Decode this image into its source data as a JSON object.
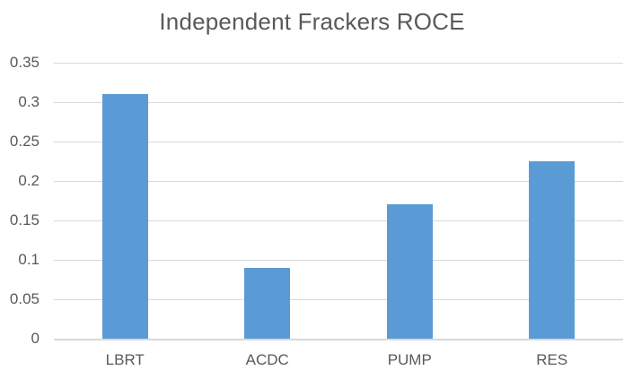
{
  "chart_data": {
    "type": "bar",
    "title": "Independent Frackers ROCE",
    "categories": [
      "LBRT",
      "ACDC",
      "PUMP",
      "RES"
    ],
    "values": [
      0.31,
      0.09,
      0.17,
      0.225
    ],
    "xlabel": "",
    "ylabel": "",
    "ylim": [
      0,
      0.35
    ],
    "yticks": [
      {
        "value": 0,
        "label": "0"
      },
      {
        "value": 0.05,
        "label": "0.05"
      },
      {
        "value": 0.1,
        "label": "0.1"
      },
      {
        "value": 0.15,
        "label": "0.15"
      },
      {
        "value": 0.2,
        "label": "0.2"
      },
      {
        "value": 0.25,
        "label": "0.25"
      },
      {
        "value": 0.3,
        "label": "0.3"
      },
      {
        "value": 0.35,
        "label": "0.35"
      }
    ],
    "grid": true,
    "legend": "none",
    "colors": {
      "bar": "#5B9BD5",
      "grid": "#D9D9D9",
      "axis_line": "#D9D9D9",
      "text": "#595959",
      "background": "#FFFFFF"
    }
  }
}
